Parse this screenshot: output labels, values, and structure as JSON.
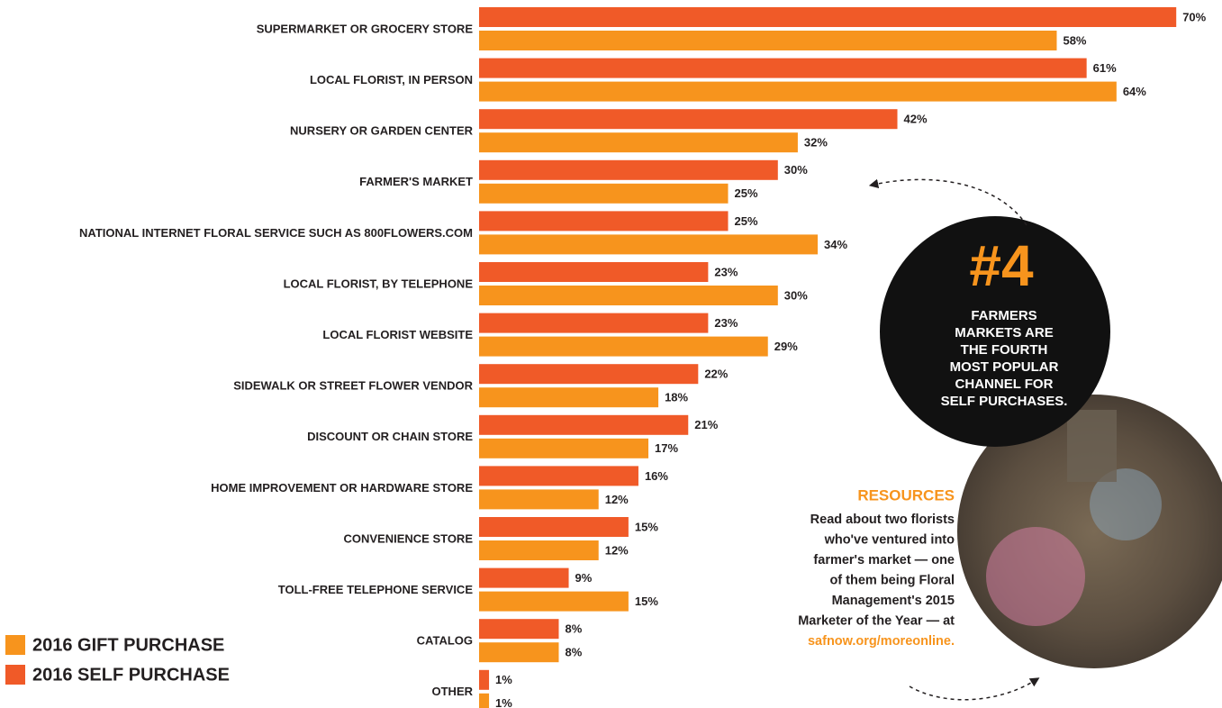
{
  "chart_data": {
    "type": "bar",
    "orientation": "horizontal",
    "categories": [
      "SUPERMARKET OR GROCERY STORE",
      "LOCAL FLORIST, IN PERSON",
      "NURSERY OR GARDEN CENTER",
      "FARMER'S MARKET",
      "NATIONAL INTERNET FLORAL SERVICE SUCH AS 800FLOWERS.COM",
      "LOCAL FLORIST, BY TELEPHONE",
      "LOCAL FLORIST WEBSITE",
      "SIDEWALK OR STREET FLOWER VENDOR",
      "DISCOUNT OR CHAIN STORE",
      "HOME IMPROVEMENT OR HARDWARE STORE",
      "CONVENIENCE STORE",
      "TOLL-FREE TELEPHONE SERVICE",
      "CATALOG",
      "OTHER"
    ],
    "series": [
      {
        "name": "2016 GIFT PURCHASE",
        "color": "#f7941d",
        "values": [
          58,
          64,
          32,
          25,
          34,
          30,
          29,
          18,
          17,
          12,
          12,
          15,
          8,
          1
        ],
        "value_labels": [
          "58%",
          "64%",
          "32%",
          "25%",
          "34%",
          "30%",
          "29%",
          "18%",
          "17%",
          "12%",
          "12%",
          "15%",
          "8%",
          "1%"
        ]
      },
      {
        "name": "2016 SELF PURCHASE",
        "color": "#f05a28",
        "values": [
          70,
          61,
          42,
          30,
          25,
          23,
          23,
          22,
          21,
          16,
          15,
          9,
          8,
          1
        ],
        "value_labels": [
          "70%",
          "61%",
          "42%",
          "30%",
          "25%",
          "23%",
          "23%",
          "22%",
          "21%",
          "16%",
          "15%",
          "9%",
          "8%",
          "1%"
        ]
      }
    ],
    "legend": "bottom-left",
    "callout": {
      "number": "#4",
      "lines": [
        "FARMERS",
        "MARKETS ARE",
        "THE FOURTH",
        "MOST POPULAR",
        "CHANNEL FOR",
        "SELF PURCHASES."
      ]
    },
    "resources": {
      "title": "RESOURCES",
      "lines": [
        "Read about two florists",
        "who've ventured into",
        "farmer's market — one",
        "of them being Floral",
        "Management's 2015",
        "Marketer of the Year — at"
      ],
      "link": "safnow.org/moreonline."
    }
  }
}
